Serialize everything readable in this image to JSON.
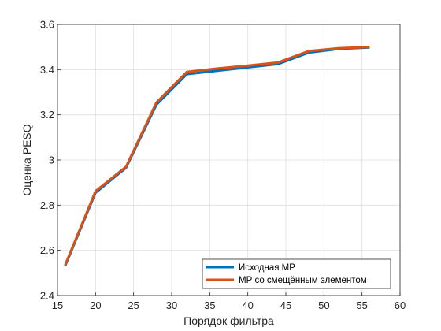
{
  "chart_data": {
    "type": "line",
    "xlabel": "Порядок фильтра",
    "ylabel": "Оценка PESQ",
    "xlim": [
      15,
      60
    ],
    "ylim": [
      2.4,
      3.6
    ],
    "xticks": [
      "15",
      "20",
      "25",
      "30",
      "35",
      "40",
      "45",
      "50",
      "55",
      "60"
    ],
    "yticks": [
      "2.4",
      "2.6",
      "2.8",
      "3",
      "3.2",
      "3.4",
      "3.6"
    ],
    "grid": true,
    "legend_position": "bottom-right",
    "x": [
      16,
      20,
      24,
      28,
      32,
      36,
      40,
      44,
      48,
      52,
      56
    ],
    "series": [
      {
        "name": "Исходная МР",
        "color": "#0072BD",
        "values": [
          2.53,
          2.855,
          2.965,
          3.245,
          3.38,
          3.395,
          3.41,
          3.425,
          3.475,
          3.492,
          3.498
        ]
      },
      {
        "name": "МР со смещённым элементом",
        "color": "#D95319",
        "values": [
          2.535,
          2.862,
          2.97,
          3.255,
          3.39,
          3.405,
          3.418,
          3.432,
          3.482,
          3.495,
          3.5
        ]
      }
    ]
  }
}
